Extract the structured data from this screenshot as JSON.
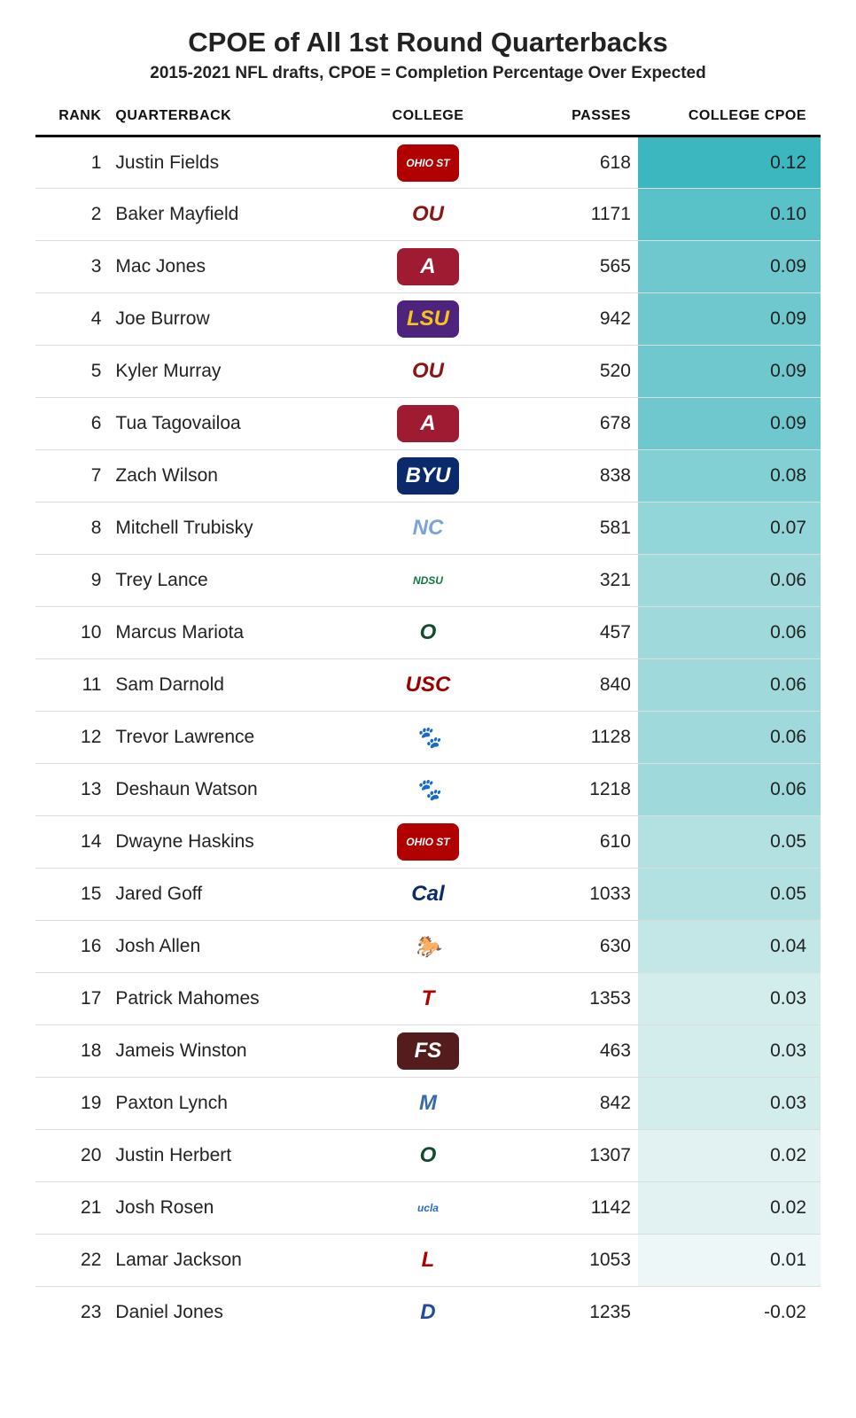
{
  "title": "CPOE of All 1st Round Quarterbacks",
  "subtitle": "2015-2021 NFL drafts, CPOE = Completion Percentage Over Expected",
  "columns": {
    "rank": "RANK",
    "quarterback": "QUARTERBACK",
    "college": "COLLEGE",
    "passes": "PASSES",
    "cpoe": "COLLEGE CPOE"
  },
  "cpoe_color_scale": {
    "max_color": "#3cb7c0",
    "high_color": "#6ec8cd",
    "mid_color": "#9fd9db",
    "low_color": "#c3e6e6",
    "min_color": "#e2f2f2",
    "none_color": "#ffffff"
  },
  "rows": [
    {
      "rank": "1",
      "quarterback": "Justin Fields",
      "college": "Ohio State",
      "logo_text": "OHIO ST",
      "logo_bg": "#b00000",
      "logo_fg": "#ffffff",
      "passes": "618",
      "cpoe": "0.12",
      "cpoe_bg": "#3cb7c0"
    },
    {
      "rank": "2",
      "quarterback": "Baker Mayfield",
      "college": "Oklahoma",
      "logo_text": "OU",
      "logo_bg": "#ffffff",
      "logo_fg": "#8a1515",
      "passes": "1171",
      "cpoe": "0.10",
      "cpoe_bg": "#59c1c8"
    },
    {
      "rank": "3",
      "quarterback": "Mac Jones",
      "college": "Alabama",
      "logo_text": "A",
      "logo_bg": "#9e1b32",
      "logo_fg": "#ffffff",
      "passes": "565",
      "cpoe": "0.09",
      "cpoe_bg": "#6ec8cd"
    },
    {
      "rank": "4",
      "quarterback": "Joe Burrow",
      "college": "LSU",
      "logo_text": "LSU",
      "logo_bg": "#4e237e",
      "logo_fg": "#f5c518",
      "passes": "942",
      "cpoe": "0.09",
      "cpoe_bg": "#6ec8cd"
    },
    {
      "rank": "5",
      "quarterback": "Kyler Murray",
      "college": "Oklahoma",
      "logo_text": "OU",
      "logo_bg": "#ffffff",
      "logo_fg": "#8a1515",
      "passes": "520",
      "cpoe": "0.09",
      "cpoe_bg": "#6ec8cd"
    },
    {
      "rank": "6",
      "quarterback": "Tua Tagovailoa",
      "college": "Alabama",
      "logo_text": "A",
      "logo_bg": "#9e1b32",
      "logo_fg": "#ffffff",
      "passes": "678",
      "cpoe": "0.09",
      "cpoe_bg": "#6ec8cd"
    },
    {
      "rank": "7",
      "quarterback": "Zach Wilson",
      "college": "BYU",
      "logo_text": "BYU",
      "logo_bg": "#0a2a6b",
      "logo_fg": "#ffffff",
      "passes": "838",
      "cpoe": "0.08",
      "cpoe_bg": "#82d0d4"
    },
    {
      "rank": "8",
      "quarterback": "Mitchell Trubisky",
      "college": "North Carolina",
      "logo_text": "NC",
      "logo_bg": "#ffffff",
      "logo_fg": "#7ba4d6",
      "passes": "581",
      "cpoe": "0.07",
      "cpoe_bg": "#93d6d9"
    },
    {
      "rank": "9",
      "quarterback": "Trey Lance",
      "college": "NDSU",
      "logo_text": "NDSU",
      "logo_bg": "#ffffff",
      "logo_fg": "#0d7a3a",
      "passes": "321",
      "cpoe": "0.06",
      "cpoe_bg": "#9fd9db"
    },
    {
      "rank": "10",
      "quarterback": "Marcus Mariota",
      "college": "Oregon",
      "logo_text": "O",
      "logo_bg": "#ffffff",
      "logo_fg": "#124a2e",
      "passes": "457",
      "cpoe": "0.06",
      "cpoe_bg": "#9fd9db"
    },
    {
      "rank": "11",
      "quarterback": "Sam Darnold",
      "college": "USC",
      "logo_text": "USC",
      "logo_bg": "#ffffff",
      "logo_fg": "#9a0000",
      "passes": "840",
      "cpoe": "0.06",
      "cpoe_bg": "#9fd9db"
    },
    {
      "rank": "12",
      "quarterback": "Trevor Lawrence",
      "college": "Clemson",
      "logo_text": "🐾",
      "logo_bg": "#ffffff",
      "logo_fg": "#f56600",
      "passes": "1128",
      "cpoe": "0.06",
      "cpoe_bg": "#9fd9db"
    },
    {
      "rank": "13",
      "quarterback": "Deshaun Watson",
      "college": "Clemson",
      "logo_text": "🐾",
      "logo_bg": "#ffffff",
      "logo_fg": "#f56600",
      "passes": "1218",
      "cpoe": "0.06",
      "cpoe_bg": "#9fd9db"
    },
    {
      "rank": "14",
      "quarterback": "Dwayne Haskins",
      "college": "Ohio State",
      "logo_text": "OHIO ST",
      "logo_bg": "#b00000",
      "logo_fg": "#ffffff",
      "passes": "610",
      "cpoe": "0.05",
      "cpoe_bg": "#b3e1e2"
    },
    {
      "rank": "15",
      "quarterback": "Jared Goff",
      "college": "Cal",
      "logo_text": "Cal",
      "logo_bg": "#ffffff",
      "logo_fg": "#0a2a6b",
      "passes": "1033",
      "cpoe": "0.05",
      "cpoe_bg": "#b3e1e2"
    },
    {
      "rank": "16",
      "quarterback": "Josh Allen",
      "college": "Wyoming",
      "logo_text": "🐎",
      "logo_bg": "#ffffff",
      "logo_fg": "#6b4a1b",
      "passes": "630",
      "cpoe": "0.04",
      "cpoe_bg": "#c3e6e6"
    },
    {
      "rank": "17",
      "quarterback": "Patrick Mahomes",
      "college": "Texas Tech",
      "logo_text": "T",
      "logo_bg": "#ffffff",
      "logo_fg": "#b00000",
      "passes": "1353",
      "cpoe": "0.03",
      "cpoe_bg": "#d3ecec"
    },
    {
      "rank": "18",
      "quarterback": "Jameis Winston",
      "college": "Florida State",
      "logo_text": "FS",
      "logo_bg": "#541c1c",
      "logo_fg": "#ffffff",
      "passes": "463",
      "cpoe": "0.03",
      "cpoe_bg": "#d3ecec"
    },
    {
      "rank": "19",
      "quarterback": "Paxton Lynch",
      "college": "Memphis",
      "logo_text": "M",
      "logo_bg": "#ffffff",
      "logo_fg": "#3a6ba5",
      "passes": "842",
      "cpoe": "0.03",
      "cpoe_bg": "#d3ecec"
    },
    {
      "rank": "20",
      "quarterback": "Justin Herbert",
      "college": "Oregon",
      "logo_text": "O",
      "logo_bg": "#ffffff",
      "logo_fg": "#124a2e",
      "passes": "1307",
      "cpoe": "0.02",
      "cpoe_bg": "#e2f2f2"
    },
    {
      "rank": "21",
      "quarterback": "Josh Rosen",
      "college": "UCLA",
      "logo_text": "ucla",
      "logo_bg": "#ffffff",
      "logo_fg": "#2a6cc4",
      "passes": "1142",
      "cpoe": "0.02",
      "cpoe_bg": "#e2f2f2"
    },
    {
      "rank": "22",
      "quarterback": "Lamar Jackson",
      "college": "Louisville",
      "logo_text": "L",
      "logo_bg": "#ffffff",
      "logo_fg": "#b00000",
      "passes": "1053",
      "cpoe": "0.01",
      "cpoe_bg": "#eef7f7"
    },
    {
      "rank": "23",
      "quarterback": "Daniel Jones",
      "college": "Duke",
      "logo_text": "D",
      "logo_bg": "#ffffff",
      "logo_fg": "#1e4aa0",
      "passes": "1235",
      "cpoe": "-0.02",
      "cpoe_bg": "#ffffff"
    }
  ]
}
